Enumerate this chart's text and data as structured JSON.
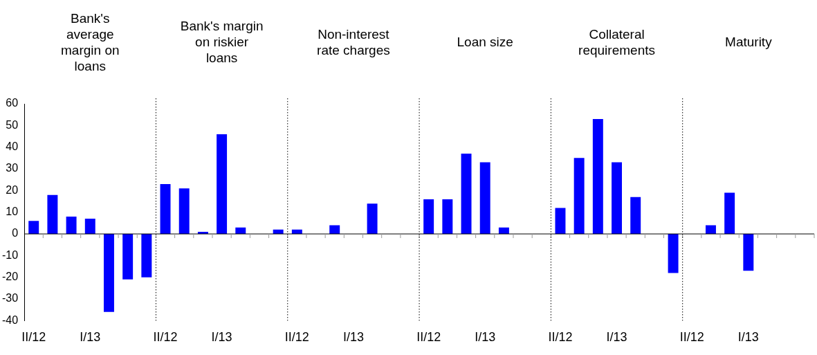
{
  "chart_data": {
    "type": "bar",
    "categories": [
      "II/12",
      null,
      null,
      "I/13",
      null,
      null,
      null,
      "II/12",
      null,
      null,
      "I/13",
      null,
      null,
      null,
      "II/12",
      null,
      null,
      "I/13",
      null,
      null,
      null,
      "II/12",
      null,
      null,
      "I/13",
      null,
      null,
      null,
      "II/12",
      null,
      null,
      "I/13",
      null,
      null,
      null,
      "II/12",
      null,
      null,
      "I/13",
      null,
      null,
      null
    ],
    "values": [
      6,
      18,
      8,
      7,
      -36,
      -21,
      -20,
      23,
      21,
      1,
      46,
      3,
      0,
      2,
      2,
      0,
      4,
      0,
      14,
      0,
      0,
      16,
      16,
      37,
      33,
      3,
      0,
      0,
      12,
      35,
      53,
      33,
      17,
      0,
      -18,
      0,
      4,
      19,
      -17,
      0,
      0,
      0
    ],
    "color": "#0000ff",
    "ylim": [
      -40,
      60
    ],
    "yticks": [
      -40,
      -30,
      -20,
      -10,
      0,
      10,
      20,
      30,
      40,
      50,
      60
    ],
    "annotations": [
      "Bank's\naverage\nmargin on\nloans",
      "Bank's margin\non riskier\nloans",
      "Non-interest\nrate charges",
      "Loan size",
      "Collateral\nrequirements",
      "Maturity"
    ],
    "grid": false,
    "legend": false
  }
}
